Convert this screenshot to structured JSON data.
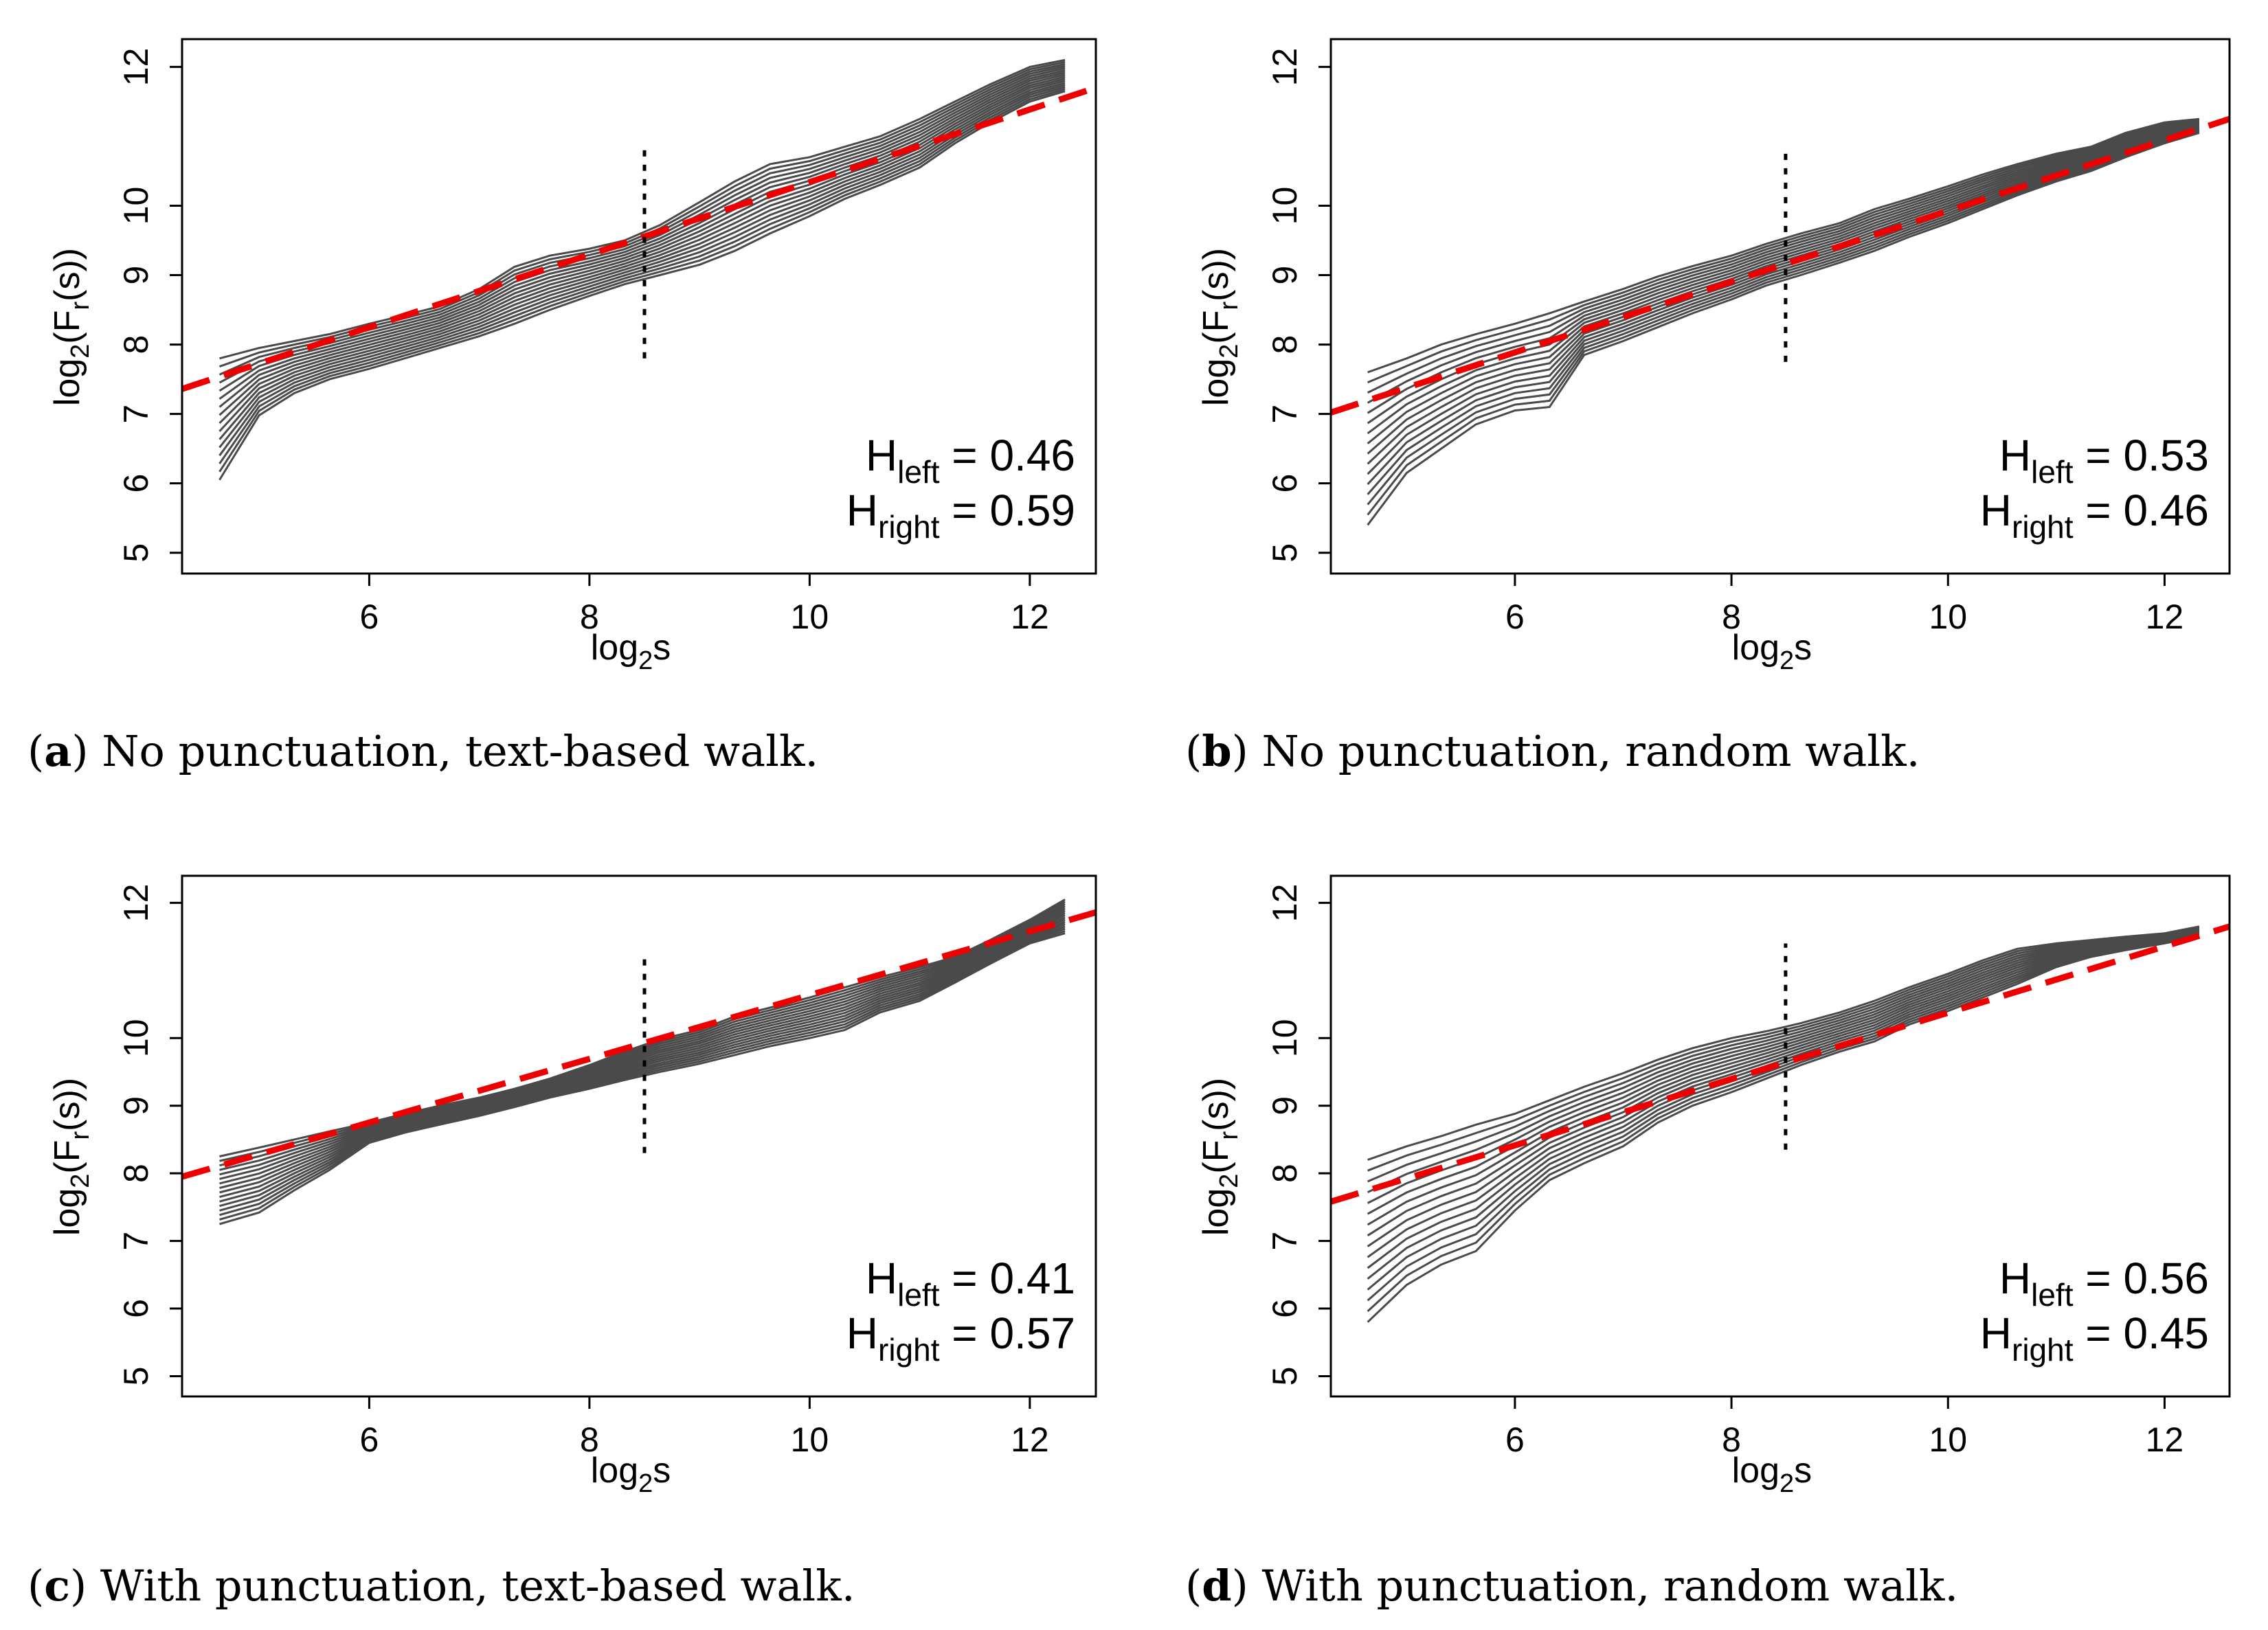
{
  "chart_data": [
    {
      "type": "line",
      "panel": "a",
      "caption_label": "a",
      "caption_text": "No punctuation, text-based walk.",
      "xlabel": "log",
      "xlabel_sub": "2",
      "xlabel_suffix": "s",
      "ylabel": "log",
      "ylabel_sub": "2",
      "ylabel_mid": "(F",
      "ylabel_sub2": "r",
      "ylabel_end": "(s))",
      "xlim": [
        4.3,
        12.6
      ],
      "ylim": [
        4.7,
        12.4
      ],
      "xticks": [
        6,
        8,
        10,
        12
      ],
      "yticks": [
        5,
        6,
        7,
        8,
        9,
        10,
        12
      ],
      "x": [
        4.64,
        5.0,
        5.32,
        5.64,
        6.0,
        6.32,
        6.64,
        7.0,
        7.32,
        7.64,
        8.0,
        8.32,
        8.64,
        9.0,
        9.32,
        9.64,
        10.0,
        10.32,
        10.64,
        11.0,
        11.32,
        11.64,
        12.0,
        12.32
      ],
      "upper": [
        7.8,
        7.95,
        8.05,
        8.15,
        8.3,
        8.42,
        8.55,
        8.8,
        9.12,
        9.28,
        9.38,
        9.5,
        9.72,
        10.05,
        10.35,
        10.6,
        10.7,
        10.85,
        11.0,
        11.25,
        11.5,
        11.75,
        12.0,
        12.1
      ],
      "lower": [
        6.05,
        6.98,
        7.3,
        7.5,
        7.65,
        7.8,
        7.95,
        8.12,
        8.3,
        8.5,
        8.7,
        8.87,
        9.0,
        9.15,
        9.35,
        9.6,
        9.85,
        10.1,
        10.3,
        10.55,
        10.9,
        11.2,
        11.5,
        11.65
      ],
      "n_curves": 16,
      "fit_line": {
        "x0": 4.3,
        "y0": 7.36,
        "x1": 12.6,
        "y1": 11.7
      },
      "breakpoint_x": 8.5,
      "breakpoint_y": [
        7.8,
        10.8
      ],
      "h_left_label": "H",
      "h_left_sub": "left",
      "h_left_value": "= 0.46",
      "h_right_label": "H",
      "h_right_sub": "right",
      "h_right_value": "= 0.59"
    },
    {
      "type": "line",
      "panel": "b",
      "caption_label": "b",
      "caption_text": "No punctuation, random walk.",
      "xlabel": "log",
      "xlabel_sub": "2",
      "xlabel_suffix": "s",
      "ylabel": "log",
      "ylabel_sub": "2",
      "ylabel_mid": "(F",
      "ylabel_sub2": "r",
      "ylabel_end": "(s))",
      "xlim": [
        4.3,
        12.6
      ],
      "ylim": [
        4.7,
        12.4
      ],
      "xticks": [
        6,
        8,
        10,
        12
      ],
      "yticks": [
        5,
        6,
        7,
        8,
        9,
        10,
        12
      ],
      "x": [
        4.64,
        5.0,
        5.32,
        5.64,
        6.0,
        6.32,
        6.64,
        7.0,
        7.32,
        7.64,
        8.0,
        8.32,
        8.64,
        9.0,
        9.32,
        9.64,
        10.0,
        10.32,
        10.64,
        11.0,
        11.32,
        11.64,
        12.0,
        12.32
      ],
      "upper": [
        7.6,
        7.8,
        8.0,
        8.15,
        8.3,
        8.45,
        8.62,
        8.8,
        8.98,
        9.13,
        9.28,
        9.45,
        9.6,
        9.75,
        9.95,
        10.1,
        10.28,
        10.45,
        10.6,
        10.75,
        10.85,
        11.05,
        11.2,
        11.25
      ],
      "lower": [
        5.4,
        6.15,
        6.5,
        6.85,
        7.05,
        7.1,
        7.85,
        8.05,
        8.25,
        8.45,
        8.65,
        8.85,
        9.0,
        9.18,
        9.35,
        9.55,
        9.75,
        9.95,
        10.15,
        10.35,
        10.5,
        10.7,
        10.9,
        11.05
      ],
      "n_curves": 16,
      "fit_line": {
        "x0": 4.3,
        "y0": 7.02,
        "x1": 12.6,
        "y1": 11.25
      },
      "breakpoint_x": 8.5,
      "breakpoint_y": [
        7.75,
        10.8
      ],
      "h_left_label": "H",
      "h_left_sub": "left",
      "h_left_value": "= 0.53",
      "h_right_label": "H",
      "h_right_sub": "right",
      "h_right_value": "= 0.46"
    },
    {
      "type": "line",
      "panel": "c",
      "caption_label": "c",
      "caption_text": "With punctuation, text-based walk.",
      "xlabel": "log",
      "xlabel_sub": "2",
      "xlabel_suffix": "s",
      "ylabel": "log",
      "ylabel_sub": "2",
      "ylabel_mid": "(F",
      "ylabel_sub2": "r",
      "ylabel_end": "(s))",
      "xlim": [
        4.3,
        12.6
      ],
      "ylim": [
        4.7,
        12.4
      ],
      "xticks": [
        6,
        8,
        10,
        12
      ],
      "yticks": [
        5,
        6,
        7,
        8,
        9,
        10,
        12
      ],
      "x": [
        4.64,
        5.0,
        5.32,
        5.64,
        6.0,
        6.32,
        6.64,
        7.0,
        7.32,
        7.64,
        8.0,
        8.32,
        8.64,
        9.0,
        9.32,
        9.64,
        10.0,
        10.32,
        10.64,
        11.0,
        11.32,
        11.64,
        12.0,
        12.32
      ],
      "upper": [
        8.25,
        8.38,
        8.5,
        8.62,
        8.75,
        8.88,
        9.0,
        9.12,
        9.25,
        9.4,
        9.6,
        9.8,
        9.98,
        10.12,
        10.32,
        10.45,
        10.6,
        10.75,
        10.9,
        11.05,
        11.2,
        11.45,
        11.75,
        12.05
      ],
      "lower": [
        7.25,
        7.42,
        7.75,
        8.05,
        8.45,
        8.6,
        8.72,
        8.85,
        8.98,
        9.12,
        9.25,
        9.38,
        9.5,
        9.62,
        9.75,
        9.88,
        10.0,
        10.12,
        10.38,
        10.55,
        10.82,
        11.1,
        11.4,
        11.55
      ],
      "n_curves": 16,
      "fit_line": {
        "x0": 4.3,
        "y0": 7.95,
        "x1": 12.6,
        "y1": 11.86
      },
      "breakpoint_x": 8.5,
      "breakpoint_y": [
        8.3,
        11.2
      ],
      "h_left_label": "H",
      "h_left_sub": "left",
      "h_left_value": "= 0.41",
      "h_right_label": "H",
      "h_right_sub": "right",
      "h_right_value": "= 0.57"
    },
    {
      "type": "line",
      "panel": "d",
      "caption_label": "d",
      "caption_text": "With punctuation, random walk.",
      "xlabel": "log",
      "xlabel_sub": "2",
      "xlabel_suffix": "s",
      "ylabel": "log",
      "ylabel_sub": "2",
      "ylabel_mid": "(F",
      "ylabel_sub2": "r",
      "ylabel_end": "(s))",
      "xlim": [
        4.3,
        12.6
      ],
      "ylim": [
        4.7,
        12.4
      ],
      "xticks": [
        6,
        8,
        10,
        12
      ],
      "yticks": [
        5,
        6,
        7,
        8,
        9,
        10,
        12
      ],
      "x": [
        4.64,
        5.0,
        5.32,
        5.64,
        6.0,
        6.32,
        6.64,
        7.0,
        7.32,
        7.64,
        8.0,
        8.32,
        8.64,
        9.0,
        9.32,
        9.64,
        10.0,
        10.32,
        10.64,
        11.0,
        11.32,
        11.64,
        12.0,
        12.32
      ],
      "upper": [
        8.2,
        8.4,
        8.55,
        8.72,
        8.88,
        9.08,
        9.28,
        9.48,
        9.68,
        9.85,
        10.0,
        10.1,
        10.22,
        10.38,
        10.55,
        10.75,
        10.95,
        11.15,
        11.32,
        11.4,
        11.45,
        11.5,
        11.55,
        11.65
      ],
      "lower": [
        5.8,
        6.35,
        6.65,
        6.85,
        7.45,
        7.9,
        8.15,
        8.4,
        8.75,
        9.0,
        9.2,
        9.4,
        9.6,
        9.8,
        9.95,
        10.2,
        10.4,
        10.6,
        10.8,
        11.05,
        11.2,
        11.3,
        11.4,
        11.5
      ],
      "n_curves": 16,
      "fit_line": {
        "x0": 4.3,
        "y0": 7.58,
        "x1": 12.6,
        "y1": 11.65
      },
      "breakpoint_x": 8.5,
      "breakpoint_y": [
        8.35,
        11.4
      ],
      "h_left_label": "H",
      "h_left_sub": "left",
      "h_left_value": "= 0.56",
      "h_right_label": "H",
      "h_right_sub": "right",
      "h_right_value": "= 0.45"
    }
  ]
}
